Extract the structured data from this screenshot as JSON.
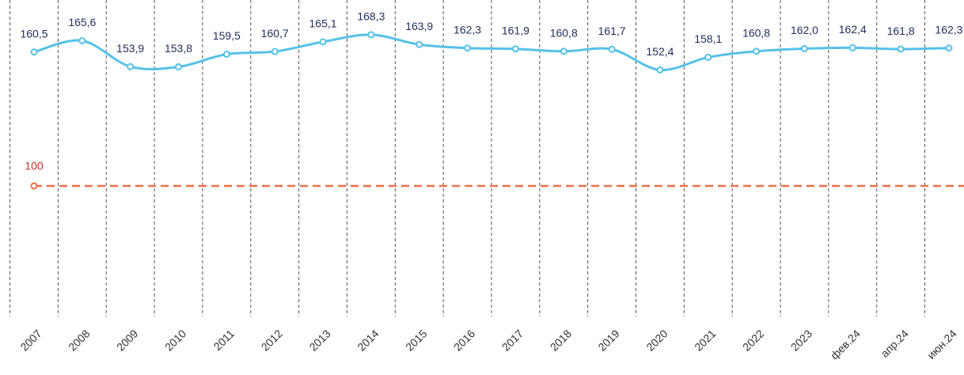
{
  "chart_data": {
    "type": "line",
    "categories": [
      "2007",
      "2008",
      "2009",
      "2010",
      "2011",
      "2012",
      "2013",
      "2014",
      "2015",
      "2016",
      "2017",
      "2018",
      "2019",
      "2020",
      "2021",
      "2022",
      "2023",
      "фев.24",
      "апр.24",
      "июн.24"
    ],
    "series": [
      {
        "color": "#56c1e8",
        "values": [
          160.5,
          165.6,
          153.9,
          153.8,
          159.5,
          160.7,
          165.1,
          168.3,
          163.9,
          162.3,
          161.9,
          160.8,
          161.7,
          152.4,
          158.1,
          160.8,
          162.0,
          162.4,
          161.8,
          162.3
        ],
        "value_labels": [
          "160,5",
          "165,6",
          "153,9",
          "153,8",
          "159,5",
          "160,7",
          "165,1",
          "168,3",
          "163,9",
          "162,3",
          "161,9",
          "160,8",
          "161,7",
          "152,4",
          "158,1",
          "160,8",
          "162,0",
          "162,4",
          "161,8",
          "162,3"
        ]
      }
    ],
    "reference": {
      "value": 100,
      "color": "#e8704a",
      "label_color": "#c0302a"
    },
    "ylim": [
      41,
      184
    ]
  }
}
